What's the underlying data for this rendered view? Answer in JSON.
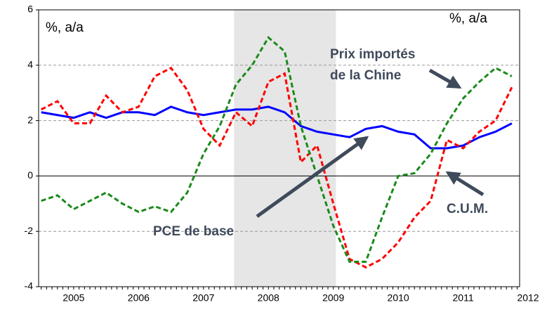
{
  "chart_data": {
    "type": "line",
    "x": [
      2004.5,
      2004.75,
      2005,
      2005.25,
      2005.5,
      2005.75,
      2006,
      2006.25,
      2006.5,
      2006.75,
      2007,
      2007.25,
      2007.5,
      2007.75,
      2008,
      2008.25,
      2008.5,
      2008.75,
      2009,
      2009.25,
      2009.5,
      2009.75,
      2010,
      2010.25,
      2010.5,
      2010.75,
      2011,
      2011.25,
      2011.5,
      2011.75
    ],
    "series": [
      {
        "name": "PCE de base",
        "color": "#0000ff",
        "dash": false,
        "values": [
          2.3,
          2.2,
          2.1,
          2.3,
          2.1,
          2.3,
          2.3,
          2.2,
          2.5,
          2.3,
          2.2,
          2.3,
          2.4,
          2.4,
          2.5,
          2.3,
          1.8,
          1.6,
          1.5,
          1.4,
          1.7,
          1.8,
          1.6,
          1.5,
          1.0,
          1.0,
          1.1,
          1.4,
          1.6,
          1.9
        ]
      },
      {
        "name": "C.U.M.",
        "color": "#ff0000",
        "dash": true,
        "values": [
          2.4,
          2.7,
          1.9,
          1.9,
          2.9,
          2.3,
          2.5,
          3.6,
          3.9,
          3.1,
          1.7,
          1.1,
          2.3,
          1.8,
          3.4,
          3.7,
          0.5,
          1.1,
          -1.0,
          -3.0,
          -3.3,
          -3.0,
          -2.4,
          -1.5,
          -0.9,
          1.3,
          1.0,
          1.6,
          2.0,
          3.2
        ]
      },
      {
        "color": "#1a8a1a",
        "dash": true,
        "values": [
          -0.9,
          -0.7,
          -1.2,
          -0.9,
          -0.6,
          -1.0,
          -1.3,
          -1.1,
          -1.3,
          -0.6,
          0.8,
          1.8,
          3.3,
          4.0,
          5.0,
          4.5,
          1.8,
          0.0,
          -1.8,
          -3.1,
          -3.1,
          -1.5,
          0.0,
          0.1,
          0.8,
          1.9,
          2.8,
          3.4,
          3.9,
          3.6
        ]
      }
    ],
    "annotations": [
      "Prix importés",
      "de la Chine"
    ],
    "y_label_left": "%, a/a",
    "y_label_right": "%, a/a",
    "shade": [
      2007.47,
      2009.04
    ],
    "xlim": [
      2004.46,
      2011.87
    ],
    "xticks": [
      2005,
      2006,
      2007,
      2008,
      2009,
      2010,
      2011,
      2012
    ],
    "ylim": [
      -4,
      6
    ],
    "yticks": [
      -4,
      -2,
      0,
      2,
      4,
      6
    ],
    "grid": true
  }
}
